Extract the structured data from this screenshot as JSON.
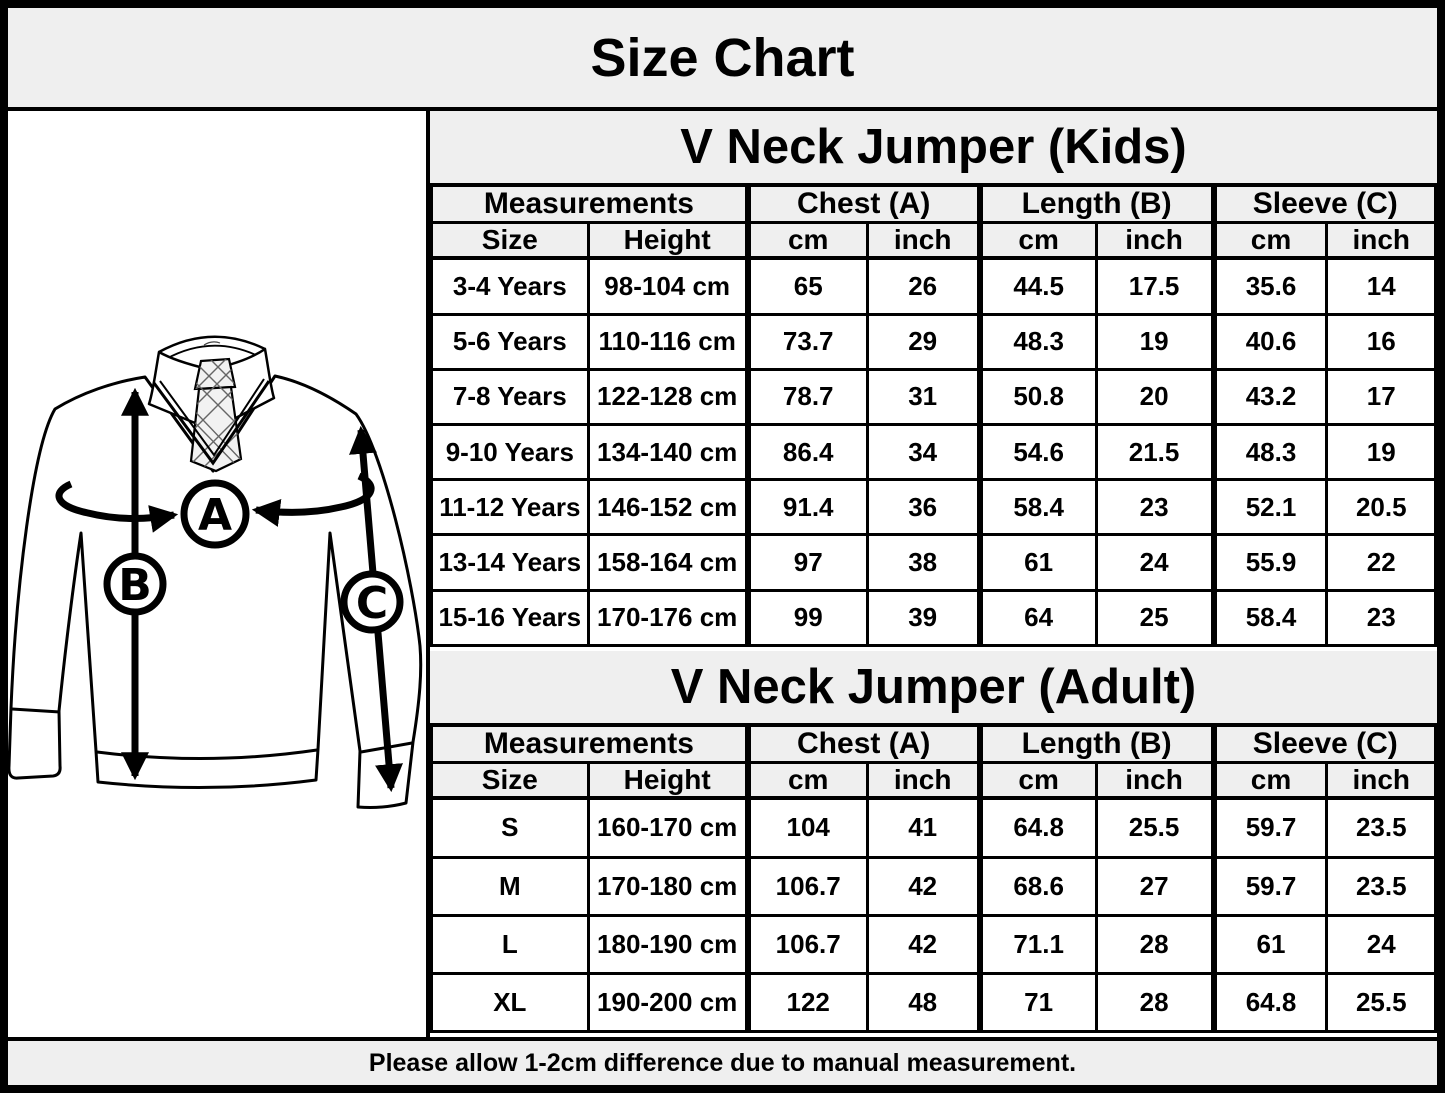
{
  "title": "Size Chart",
  "note": "Please allow 1-2cm difference due to manual measurement.",
  "diagram": {
    "description": "V neck jumper line drawing with shirt and tie, measurement arrows",
    "labels": {
      "chest": "A",
      "length": "B",
      "sleeve": "C"
    }
  },
  "colors": {
    "band_bg": "#efefef",
    "cell_bg": "#ffffff",
    "border": "#000000",
    "text": "#000000"
  },
  "chart_data": [
    {
      "type": "table",
      "title": "V Neck Jumper (Kids)",
      "group_headers": [
        "Measurements",
        "Chest (A)",
        "Length (B)",
        "Sleeve (C)"
      ],
      "sub_headers": [
        "Size",
        "Height",
        "cm",
        "inch",
        "cm",
        "inch",
        "cm",
        "inch"
      ],
      "rows": [
        [
          "3-4 Years",
          "98-104 cm",
          "65",
          "26",
          "44.5",
          "17.5",
          "35.6",
          "14"
        ],
        [
          "5-6 Years",
          "110-116 cm",
          "73.7",
          "29",
          "48.3",
          "19",
          "40.6",
          "16"
        ],
        [
          "7-8 Years",
          "122-128 cm",
          "78.7",
          "31",
          "50.8",
          "20",
          "43.2",
          "17"
        ],
        [
          "9-10 Years",
          "134-140 cm",
          "86.4",
          "34",
          "54.6",
          "21.5",
          "48.3",
          "19"
        ],
        [
          "11-12 Years",
          "146-152 cm",
          "91.4",
          "36",
          "58.4",
          "23",
          "52.1",
          "20.5"
        ],
        [
          "13-14 Years",
          "158-164 cm",
          "97",
          "38",
          "61",
          "24",
          "55.9",
          "22"
        ],
        [
          "15-16 Years",
          "170-176 cm",
          "99",
          "39",
          "64",
          "25",
          "58.4",
          "23"
        ]
      ]
    },
    {
      "type": "table",
      "title": "V Neck Jumper (Adult)",
      "group_headers": [
        "Measurements",
        "Chest (A)",
        "Length (B)",
        "Sleeve (C)"
      ],
      "sub_headers": [
        "Size",
        "Height",
        "cm",
        "inch",
        "cm",
        "inch",
        "cm",
        "inch"
      ],
      "rows": [
        [
          "S",
          "160-170 cm",
          "104",
          "41",
          "64.8",
          "25.5",
          "59.7",
          "23.5"
        ],
        [
          "M",
          "170-180 cm",
          "106.7",
          "42",
          "68.6",
          "27",
          "59.7",
          "23.5"
        ],
        [
          "L",
          "180-190 cm",
          "106.7",
          "42",
          "71.1",
          "28",
          "61",
          "24"
        ],
        [
          "XL",
          "190-200 cm",
          "122",
          "48",
          "71",
          "28",
          "64.8",
          "25.5"
        ]
      ]
    }
  ]
}
